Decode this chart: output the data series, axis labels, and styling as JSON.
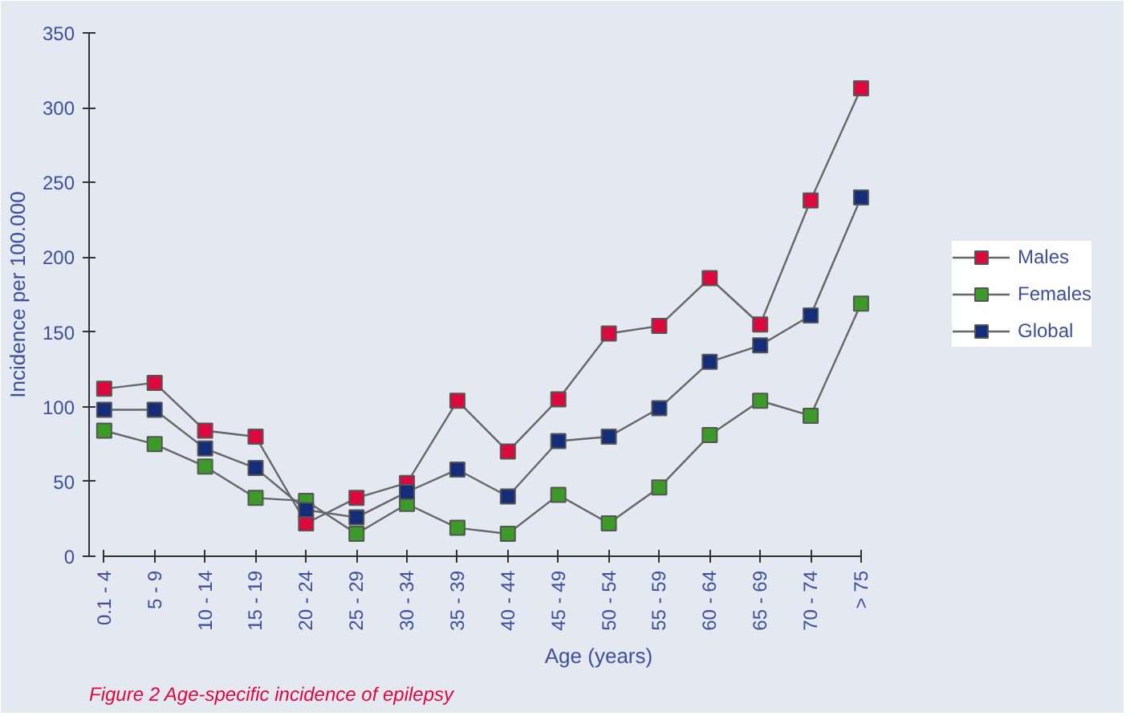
{
  "chart_data": {
    "type": "line",
    "xlabel": "Age (years)",
    "ylabel": "Incidence per 100.000",
    "categories": [
      "0.1 - 4",
      "5 - 9",
      "10 - 14",
      "15 - 19",
      "20 - 24",
      "25 - 29",
      "30 - 34",
      "35 - 39",
      "40 - 44",
      "45 - 49",
      "50 - 54",
      "55 - 59",
      "60 - 64",
      "65 - 69",
      "70 - 74",
      "> 75"
    ],
    "series": [
      {
        "name": "Males",
        "color": "#dc0a3c",
        "values": [
          112,
          116,
          84,
          80,
          22,
          39,
          49,
          104,
          70,
          105,
          149,
          154,
          186,
          155,
          238,
          313
        ]
      },
      {
        "name": "Females",
        "color": "#3c9b28",
        "values": [
          84,
          75,
          60,
          39,
          37,
          15,
          35,
          19,
          15,
          41,
          22,
          46,
          81,
          104,
          94,
          169
        ]
      },
      {
        "name": "Global",
        "color": "#142d78",
        "values": [
          98,
          98,
          72,
          59,
          31,
          26,
          43,
          58,
          40,
          77,
          80,
          99,
          130,
          141,
          161,
          240
        ]
      }
    ],
    "ylim": [
      0,
      350
    ],
    "yticks": [
      0,
      50,
      100,
      150,
      200,
      250,
      300,
      350
    ],
    "grid": false,
    "legend": "right",
    "marker": "square",
    "line_style": "solid",
    "annotations": [
      "Figure 2 Age-specific incidence of epilepsy"
    ]
  }
}
